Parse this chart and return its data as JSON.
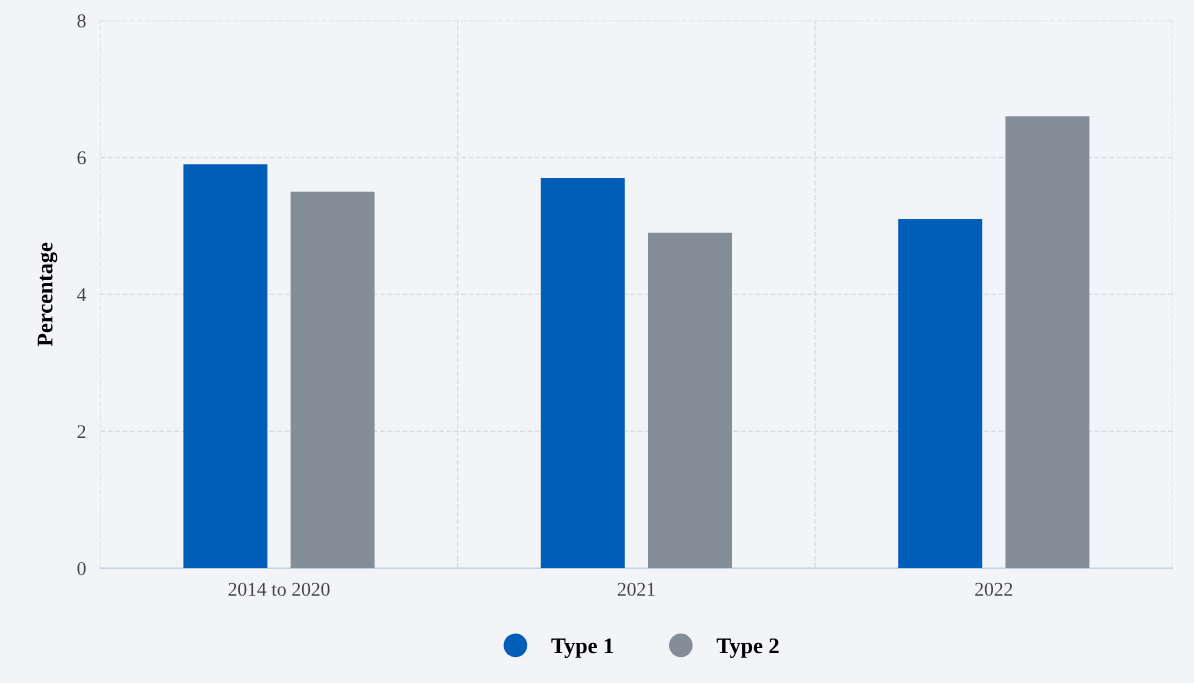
{
  "chart_data": {
    "type": "bar",
    "ylabel": "Percentage",
    "categories": [
      "2014 to 2020",
      "2021",
      "2022"
    ],
    "series": [
      {
        "name": "Type 1",
        "color": "#005eb8",
        "values": [
          5.9,
          5.7,
          5.1
        ]
      },
      {
        "name": "Type 2",
        "color": "#838e99",
        "values": [
          5.5,
          4.9,
          6.6
        ]
      }
    ],
    "ylim": [
      0,
      8
    ],
    "yticks": [
      0,
      2,
      4,
      6,
      8
    ],
    "grid": true,
    "legend": "bottom"
  }
}
